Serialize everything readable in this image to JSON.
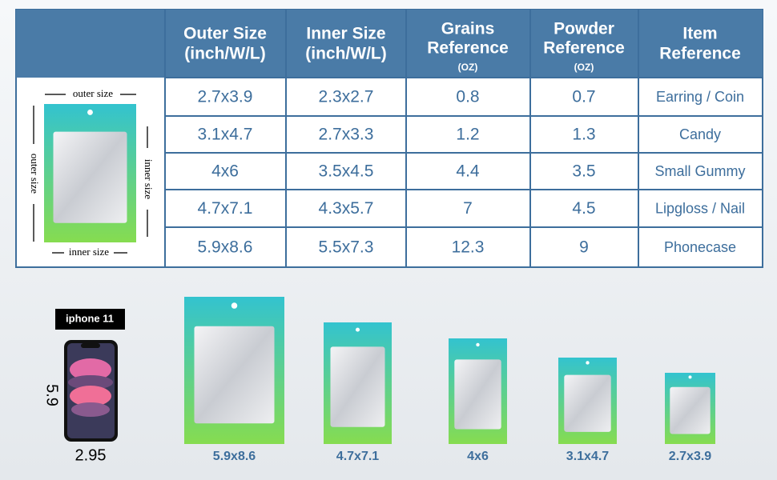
{
  "table": {
    "headers": [
      [
        "Outer Size",
        "(inch/W/L)"
      ],
      [
        "Inner Size",
        "(inch/W/L)"
      ],
      [
        "Grains",
        "Reference",
        "(OZ)"
      ],
      [
        "Powder",
        "Reference",
        "(OZ)"
      ],
      [
        "Item",
        "Reference"
      ]
    ],
    "rows": [
      [
        "2.7x3.9",
        "2.3x2.7",
        0.8,
        0.7,
        "Earring / Coin"
      ],
      [
        "3.1x4.7",
        "2.7x3.3",
        1.2,
        1.3,
        "Candy"
      ],
      [
        "4x6",
        "3.5x4.5",
        4.4,
        3.5,
        "Small Gummy"
      ],
      [
        "4.7x7.1",
        "4.3x5.7",
        7,
        4.5,
        "Lipgloss / Nail"
      ],
      [
        "5.9x8.6",
        "5.5x7.3",
        12.3,
        9,
        "Phonecase"
      ]
    ]
  },
  "diagram": {
    "outer_top": "outer size",
    "outer_side": "outer size",
    "inner_side": "inner size",
    "inner_bottom": "inner size"
  },
  "phone": {
    "model": "iphone 11",
    "height": 5.9,
    "width": 2.95
  },
  "bags": [
    "5.9x8.6",
    "4.7x7.1",
    "4x6",
    "3.1x4.7",
    "2.7x3.9"
  ]
}
